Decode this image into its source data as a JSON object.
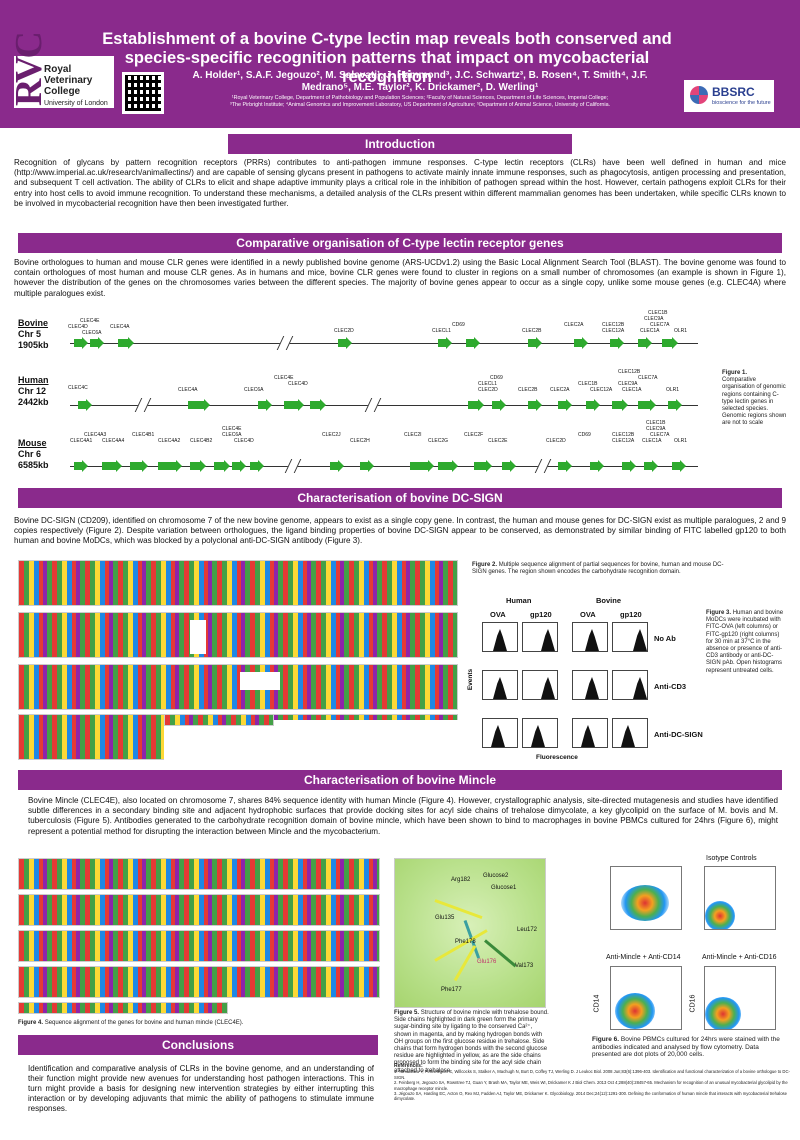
{
  "header": {
    "title": "Establishment of a bovine C-type lectin map reveals both conserved and species-specific recognition patterns that impact on mycobacterial recognition",
    "authors": "A. Holder¹, S.A.F. Jegouzo², M. Salavati¹, J. Hammond³, J.C. Schwartz³, B. Rosen⁴, T. Smith⁴, J.F. Medrano⁵, M.E. Taylor², K. Drickamer², D. Werling¹",
    "affiliations_1": "¹Royal Veterinary College, Department of Pathobiology and Population Sciences; ²Faculty of Natural Sciences, Department of Life Sciences, Imperial College;",
    "affiliations_2": "³The Pirbright Institute; ⁴Animal Genomics and Improvement Laboratory, US Department of Agriculture; ⁵Department of Animal Science, University of California.",
    "logo_letters": "RVC",
    "logo_name": "Royal Veterinary College",
    "logo_sub": "University of London",
    "funder": "BBSRC",
    "funder_tag": "bioscience for the future"
  },
  "sections": {
    "intro": {
      "heading": "Introduction",
      "text": "Recognition of glycans by pattern recognition receptors (PRRs) contributes to anti-pathogen immune responses. C-type lectin receptors (CLRs) have been well defined in human and mice (http://www.imperial.ac.uk/research/animallectins/) and are capable of sensing glycans present in pathogens to activate mainly innate immune responses, such as phagocytosis, antigen processing and presentation, and subsequent T cell activation. The ability of CLRs to elicit and shape adaptive immunity plays a critical role in the inhibition of pathogen spread within the host. However, certain pathogens exploit CLRs for their entry into host cells to avoid immune recognition. To understand these mechanisms, a detailed analysis of the CLRs present within different mammalian genomes has been undertaken, while specific CLRs known to be involved in mycobacterial recognition have then been investigated further."
    },
    "comparative": {
      "heading": "Comparative organisation of C-type lectin receptor genes",
      "text": "Bovine orthologues to human and mouse CLR genes were identified in a newly published bovine genome (ARS-UCDv1.2) using the Basic Local Alignment Search Tool (BLAST). The bovine genome was found to contain orthologues of most human and mouse CLR genes. As in humans and mice, bovine CLR genes were found to cluster in regions on a small number of chromosomes (an example is shown in Figure 1), however the distribution of the genes on the chromosomes varies between the different species. The majority of bovine genes appear to occur as a single copy, unlike some mouse genes (e.g. CLEC4A) where multiple paralogues exist.",
      "figure_caption_title": "Figure 1.",
      "figure_caption": "Comparative organisation of genomic regions containing C-type lectin genes in selected species. Genomic regions shown are not to scale",
      "genomes": [
        {
          "species": "Bovine",
          "chr": "Chr 5",
          "size": "1905kb"
        },
        {
          "species": "Human",
          "chr": "Chr 12",
          "size": "2442kb"
        },
        {
          "species": "Mouse",
          "chr": "Chr 6",
          "size": "6585kb"
        }
      ],
      "bovine_genes": [
        "CLEC4E",
        "CLEC4D",
        "CLEC4A",
        "CLEC6A",
        "CLEC2D",
        "CD69",
        "CLECL1",
        "CLEC2B",
        "CLEC2A",
        "CLEC12B",
        "CLEC12A",
        "CLEC1B",
        "CLEC9A",
        "CLEC7A",
        "CLEC1A",
        "OLR1"
      ],
      "human_genes": [
        "CLEC4C",
        "CLEC4A",
        "CLEC6A",
        "CLEC4E",
        "CLEC4D",
        "CD69",
        "CLECL1",
        "CLEC2D",
        "CLEC2B",
        "CLEC2A",
        "CLEC1B",
        "CLEC12A",
        "CLEC12B",
        "CLEC9A",
        "CLEC7A",
        "CLEC1A",
        "OLR1"
      ],
      "mouse_genes": [
        "CLEC4A3",
        "CLEC4A1",
        "CLEC4A4",
        "CLEC4B1",
        "CLEC4A2",
        "CLEC4B2",
        "CLEC4E",
        "CLEC6A",
        "CLEC4D",
        "CLEC2J",
        "CLEC2H",
        "CLEC2I",
        "CLEC2G",
        "CLEC2F",
        "CLEC2E",
        "CLEC2D",
        "CD69",
        "CLEC1B",
        "CLEC12B",
        "CLEC12A",
        "CLEC9A",
        "CLEC7A",
        "CLEC1A",
        "OLR1"
      ]
    },
    "dcsign": {
      "heading": "Characterisation of bovine DC-SIGN",
      "text": "Bovine DC-SIGN (CD209), identified on chromosome 7 of the new bovine genome, appears to exist as a single copy gene. In contrast, the human and mouse genes for DC-SIGN exist as multiple paralogues, 2 and 9 copies respectively (Figure 2). Despite variation between orthologues, the ligand binding properties of bovine DC-SIGN appear to be conserved, as demonstrated by  similar binding of FITC labelled gp120 to both human and bovine MoDCs, which was blocked by a polyclonal anti-DC-SIGN antibody (Figure 3).",
      "fig2_title": "Figure 2.",
      "fig2_caption": "Multiple sequence alignment of partial sequences for bovine, human and mouse DC-SIGN genes. The region shown encodes the carbohydrate recognition domain.",
      "fig3_title": "Figure 3.",
      "fig3_caption": "Human and bovine MoDCs were incubated with FITC-OVA (left columns) or FITC-gp120 (right columns) for 30 min at 37°C in the absence or presence of anti-CD3 antibody or anti-DC-SIGN pAb. Open histograms represent untreated cells.",
      "flow_species": [
        "Human",
        "Bovine"
      ],
      "flow_columns": [
        "OVA",
        "gp120",
        "OVA",
        "gp120"
      ],
      "flow_rows": [
        "No Ab",
        "Anti-CD3",
        "Anti-DC-SIGN"
      ],
      "flow_ylabel": "Events",
      "flow_xlabel": "Fluorescence"
    },
    "mincle": {
      "heading": "Characterisation of bovine Mincle",
      "text": "Bovine Mincle (CLEC4E), also located on chromosome 7, shares 84% sequence identity with human Mincle (Figure 4).  However, crystallographic analysis, site-directed mutagenesis and studies have identified subtle differences in a secondary binding site and adjacent hydrophobic surfaces that provide docking sites for acyl side chains of trehalose dimycolate, a key glycolipid on the surface of M. bovis and M. tuberculosis (Figure 5). Antibodies generated to the carbohydrate recognition domain of bovine mincle, which have been shown to bind to macrophages in bovine PBMCs cultured for 24hrs (Figure 6), might represent a potential method for disrupting the interaction between Mincle and the mycobacterium.",
      "fig4_title": "Figure 4.",
      "fig4_caption": "Sequence alignment of the genes for bovine and human mincle (CLEC4E).",
      "fig5_title": "Figure 5.",
      "fig5_caption": "Structure of bovine mincle with trehalose bound. Side chains highlighted in dark green form the primary sugar-binding site by ligating to the conserved Ca²⁺, shown in magenta, and by making hydrogen bonds with OH groups on the first glucose residue in trehalose. Side chains that form hydrogen bonds with the second glucose residue are highlighted in yellow, as are the side chains proposed to form the binding site for the acyl side chain attached to trehalose.",
      "mol_labels": [
        "Arg182",
        "Glucose2",
        "Glucose1",
        "Glu135",
        "Leu172",
        "Phe178",
        "Glu176",
        "Val173",
        "Phe177"
      ],
      "fig6_title": "Figure 6.",
      "fig6_caption": "Bovine PBMCs cultured for 24hrs were stained with the antibodies indicated and analysed by flow cytometry. Data presented are dot plots of 20,000 cells.",
      "plot_titles": [
        "Isotype Controls",
        "Anti-Mincle + Anti-CD14",
        "Anti-Mincle + Anti-CD16"
      ],
      "plot_axes": [
        "CD14",
        "CD16"
      ]
    },
    "conclusions": {
      "heading": "Conclusions",
      "text": "Identification and comparative analysis of CLRs in the bovine genome, and an understanding of their function might provide new avenues for understanding host pathogen interactions. This in turn might provide a basis for designing new intervention strategies by either interrupting this interaction or by developing adjuvants that mimic the ability of pathogens to stimulate immune responses."
    },
    "references": {
      "heading": "References:",
      "items": [
        "1. Yamakawa Y, Pennelegion C, Willcocks S, Stalker A, Machugh N, Burt D, Coffey TJ, Werling D. J Leukoc Biol. 2008 Jun;83(6):1396-403. Identification and functional characterization of a bovine orthologue to DC-SIGN.",
        "2. Feinberg H, Jegouzo SA, Rowntree TJ, Guan Y, Brash MA, Taylor ME, Weis WI, Drickamer K J Biol Chem. 2013 Oct 4;288(40):28457-65. Mechanism for recognition of an unusual mycobacterial glycolipid by the macrophage receptor mincle.",
        "3. Jégouzo SA, Harding EC, Acton O, Rex MJ, Fadden AJ, Taylor ME, Drickamer K. Glycobiology. 2014 Dec;24(12):1291-300. Defining the conformation of human mincle that interacts with mycobacterial trehalose dimycolate."
      ]
    }
  },
  "colors": {
    "brand_purple": "#8a2a8c",
    "gene_green": "#2eaa2e"
  }
}
